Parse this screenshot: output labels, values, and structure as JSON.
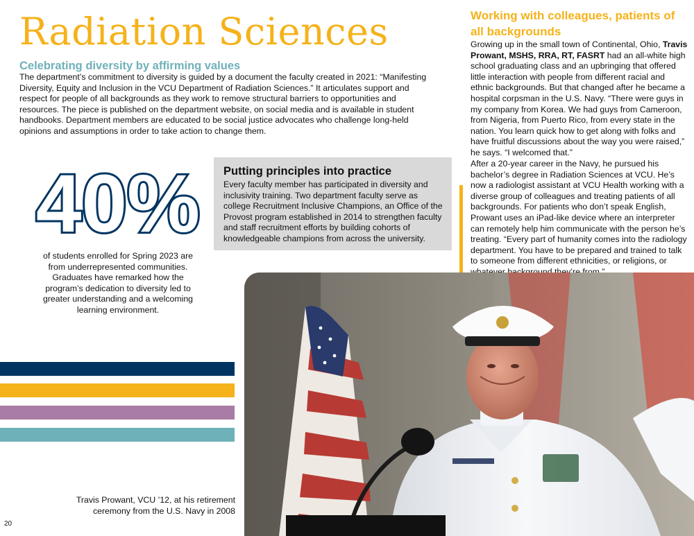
{
  "page": {
    "title": "Radiation Sciences",
    "page_number": "20"
  },
  "diversity": {
    "heading": "Celebrating diversity by affirming values",
    "body": "The department’s commitment to diversity is guided by a document the faculty created in 2021: “Manifesting Diversity, Equity and Inclusion in the VCU Department of Radiation Sciences.” It articulates support and respect for people of all backgrounds as they work to remove structural barriers to opportunities and resources. The piece is published on the department website, on social media and is available in student handbooks. Department members are educated to be social justice advocates who challenge long-held opinions and assumptions in order to take action to change them."
  },
  "stat": {
    "value": "40%",
    "caption": "of students enrolled for Spring 2023 are from underrepresented communities. Graduates have remarked how the program’s dedication to diversity led to greater understanding and a welcoming learning environment."
  },
  "principles": {
    "heading": "Putting principles into practice",
    "body": "Every faculty member has participated in diversity and inclusivity training. Two department faculty serve as college Recruitment Inclusive Champions, an Office of the Provost program established in 2014 to strengthen faculty and staff recruitment efforts by building cohorts of knowledgeable champions from across the university."
  },
  "colleagues": {
    "heading": "Working with colleagues, patients of all backgrounds",
    "p1_before": "Growing up in the small town of Continental, Ohio, ",
    "p1_name": "Travis Prowant, MSHS, RRA, RT, FASRT",
    "p1_after": " had an all-white high school graduating class and an upbringing that offered little interaction with people from different racial and ethnic backgrounds. But that changed after he became a hospital corpsman in the U.S. Navy. “There were guys in my company from Korea. We had guys from Cameroon, from Nigeria, from Puerto Rico, from every state in the nation. You learn quick how to get along with folks and have fruitful discussions about the way you were raised,” he says. “I welcomed that.”",
    "p2": "After a 20-year career in the Navy, he pursued his bachelor’s degree in Radiation Sciences at VCU. He’s now a radiologist assistant at VCU Health working with a diverse group of colleagues and treating patients of all backgrounds. For patients who don’t speak English, Prowant uses an iPad-like device where an interpreter can remotely help him communicate with the person he’s treating. “Every part of humanity comes into the radiology department. You have to be prepared and trained to talk to someone from different ethnicities, or religions, or whatever background they’re from.”"
  },
  "photo": {
    "caption": "Travis Prowant, VCU ’12, at his retirement ceremony from the U.S. Navy in 2008"
  },
  "colors": {
    "gold": "#f5b21a",
    "navy": "#003561",
    "teal": "#6fb1b8",
    "purple": "#a87ca4",
    "panel_gray": "#d9d9d9"
  }
}
